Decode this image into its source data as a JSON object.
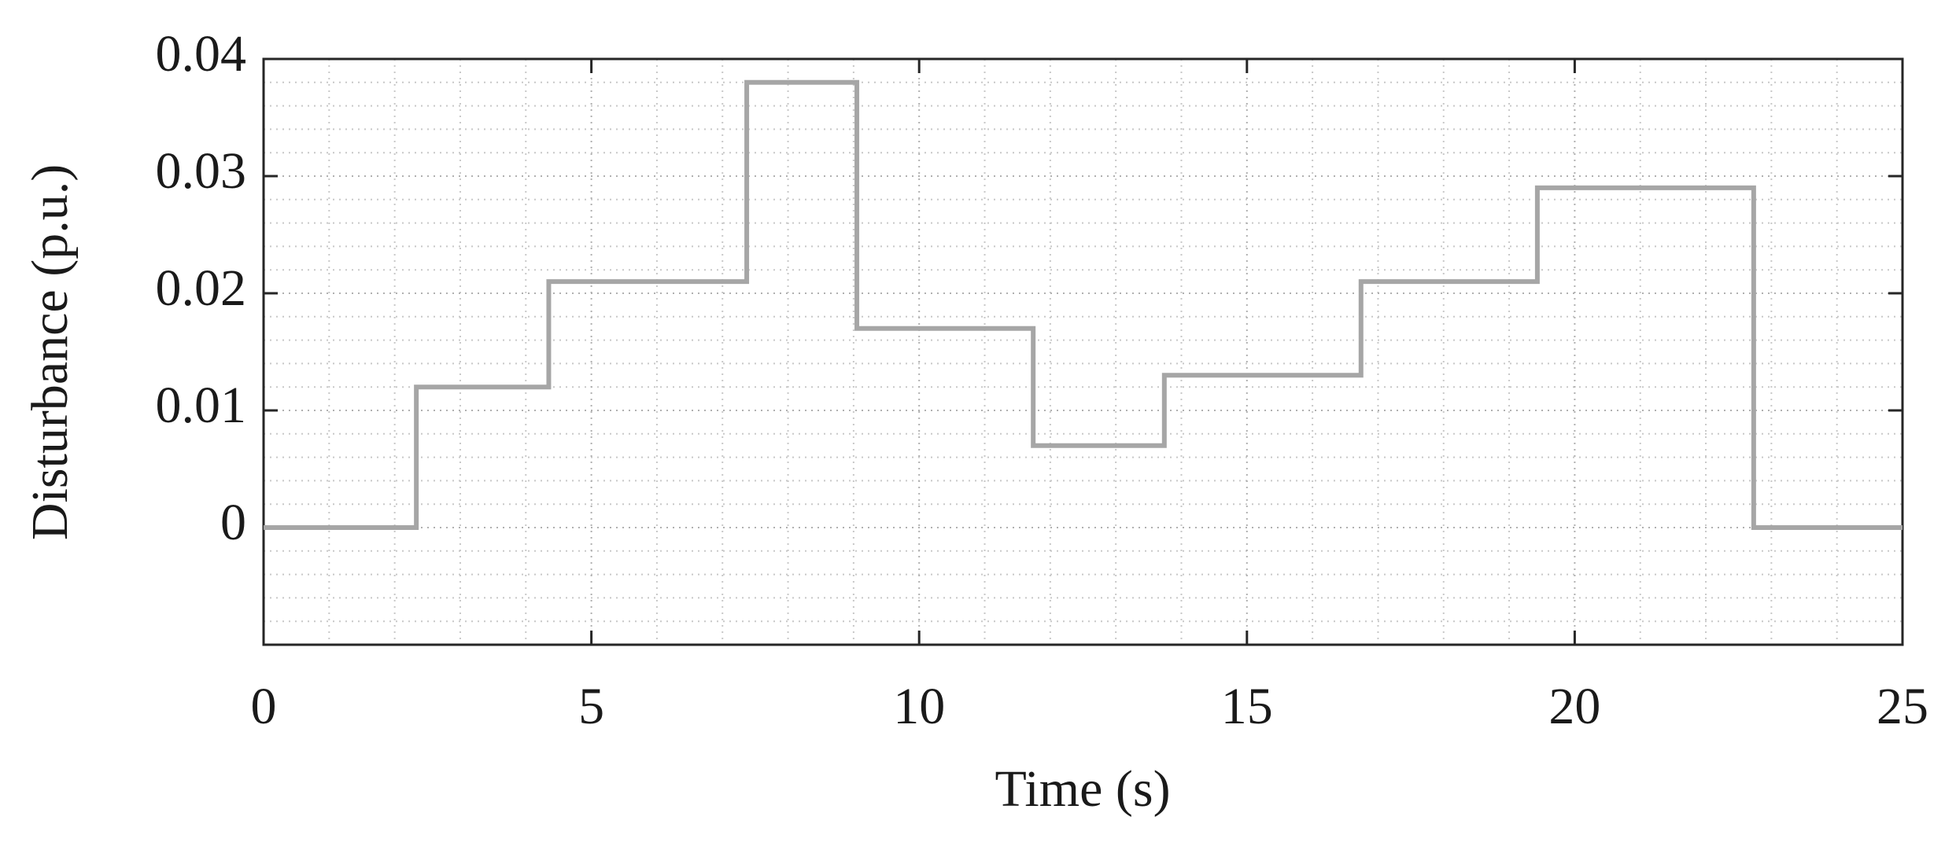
{
  "chart_data": {
    "type": "line",
    "xlabel": "Time (s)",
    "ylabel": "Disturbance (p.u.)",
    "x": [
      0,
      2.33,
      2.33,
      4.35,
      4.35,
      7.37,
      7.37,
      9.05,
      9.05,
      11.74,
      11.74,
      13.74,
      13.74,
      16.74,
      16.74,
      19.43,
      19.43,
      22.73,
      22.73,
      25
    ],
    "series": [
      {
        "color": "#a6a6a6",
        "values": [
          0,
          0,
          0.012,
          0.012,
          0.021,
          0.021,
          0.038,
          0.038,
          0.017,
          0.017,
          0.007,
          0.007,
          0.013,
          0.013,
          0.021,
          0.021,
          0.029,
          0.029,
          0,
          0
        ]
      }
    ],
    "xlim": [
      0,
      25
    ],
    "xticks": [
      0,
      5,
      10,
      15,
      20,
      25
    ],
    "ylim": [
      -0.01,
      0.04
    ],
    "yticks": [
      0,
      0.01,
      0.02,
      0.03,
      0.04
    ],
    "xminorticks": [
      1,
      2,
      3,
      4,
      6,
      7,
      8,
      9,
      11,
      12,
      13,
      14,
      16,
      17,
      18,
      19,
      21,
      22,
      23,
      24
    ],
    "yminorticks": [
      -0.008,
      -0.006,
      -0.004,
      -0.002,
      0.002,
      0.004,
      0.006,
      0.008,
      0.012,
      0.014,
      0.016,
      0.018,
      0.022,
      0.024,
      0.026,
      0.028,
      0.032,
      0.034,
      0.036,
      0.038
    ],
    "grid": true,
    "minor_grid": true
  }
}
